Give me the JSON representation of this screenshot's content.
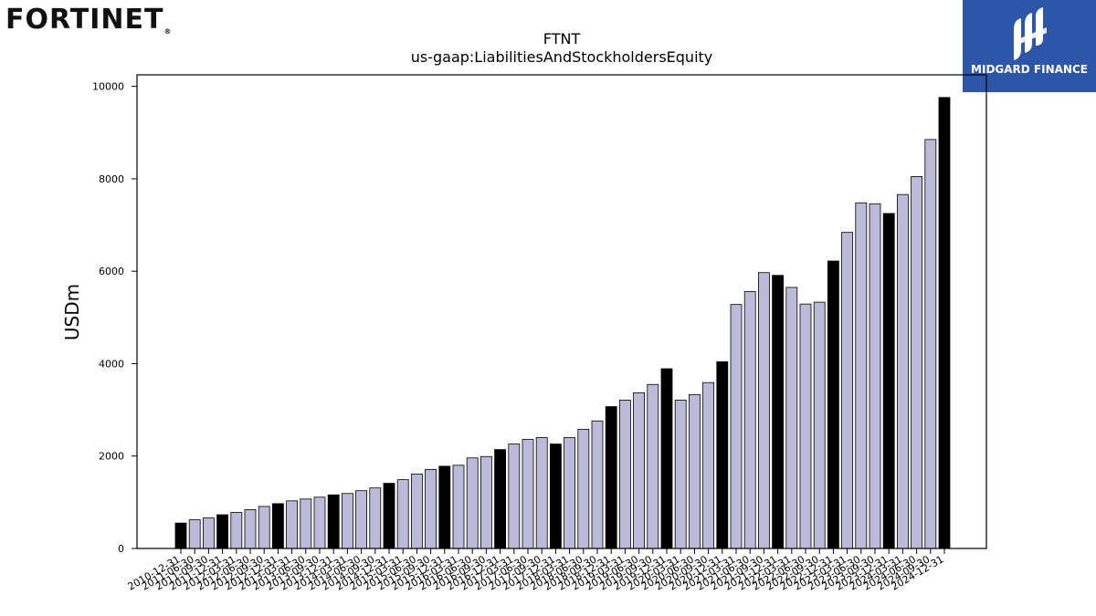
{
  "brand": {
    "left_logo_text": "FORTINET",
    "left_logo_mark": "®",
    "right_logo_text": "MIDGARD FINANCE",
    "right_logo_icon": "stylized-m-icon"
  },
  "colors": {
    "bar_default": "#bcbad9",
    "bar_highlight": "#000000",
    "bar_edge": "#000000",
    "right_logo_bg": "#2d55a8"
  },
  "chart_data": {
    "type": "bar",
    "title": "FTNT",
    "subtitle": "us-gaap:LiabilitiesAndStockholdersEquity",
    "xlabel": "",
    "ylabel": "USDm",
    "ylim": [
      0,
      10250
    ],
    "yticks": [
      0,
      2000,
      4000,
      6000,
      8000,
      10000
    ],
    "grid": false,
    "legend": "none",
    "categories": [
      "2010-12-31",
      "2011-06-30",
      "2011-09-30",
      "2011-12-31",
      "2012-03-31",
      "2012-06-30",
      "2012-09-30",
      "2012-12-31",
      "2013-03-31",
      "2013-06-30",
      "2013-09-30",
      "2013-12-31",
      "2014-03-31",
      "2014-06-30",
      "2014-09-30",
      "2014-12-31",
      "2015-03-31",
      "2015-06-30",
      "2015-09-30",
      "2015-12-31",
      "2016-03-31",
      "2016-06-30",
      "2016-09-30",
      "2016-12-31",
      "2017-03-31",
      "2017-06-30",
      "2017-09-30",
      "2017-12-31",
      "2018-03-31",
      "2018-06-30",
      "2018-09-30",
      "2018-12-31",
      "2019-03-31",
      "2019-06-30",
      "2019-09-30",
      "2019-12-31",
      "2020-03-31",
      "2020-06-30",
      "2020-09-30",
      "2020-12-31",
      "2021-03-31",
      "2021-06-30",
      "2021-09-30",
      "2021-12-31",
      "2022-03-31",
      "2022-06-30",
      "2022-09-30",
      "2022-12-31",
      "2023-03-31",
      "2023-06-30",
      "2023-09-30",
      "2023-12-31",
      "2024-03-31",
      "2024-06-30",
      "2024-09-30",
      "2024-12-31"
    ],
    "values": [
      550,
      620,
      660,
      730,
      780,
      840,
      910,
      970,
      1030,
      1070,
      1110,
      1160,
      1190,
      1250,
      1310,
      1410,
      1490,
      1610,
      1710,
      1780,
      1800,
      1960,
      1990,
      2140,
      2260,
      2360,
      2400,
      2260,
      2400,
      2580,
      2760,
      3070,
      3210,
      3370,
      3550,
      3890,
      3210,
      3330,
      3590,
      4040,
      5280,
      5560,
      5970,
      5910,
      5650,
      5290,
      5330,
      6220,
      6840,
      7480,
      7460,
      7250,
      7660,
      8050,
      8850,
      9760
    ],
    "highlighted": [
      true,
      false,
      false,
      true,
      false,
      false,
      false,
      true,
      false,
      false,
      false,
      true,
      false,
      false,
      false,
      true,
      false,
      false,
      false,
      true,
      false,
      false,
      false,
      true,
      false,
      false,
      false,
      true,
      false,
      false,
      false,
      true,
      false,
      false,
      false,
      true,
      false,
      false,
      false,
      true,
      false,
      false,
      false,
      true,
      false,
      false,
      false,
      true,
      false,
      false,
      false,
      true,
      false,
      false,
      false,
      true
    ]
  }
}
